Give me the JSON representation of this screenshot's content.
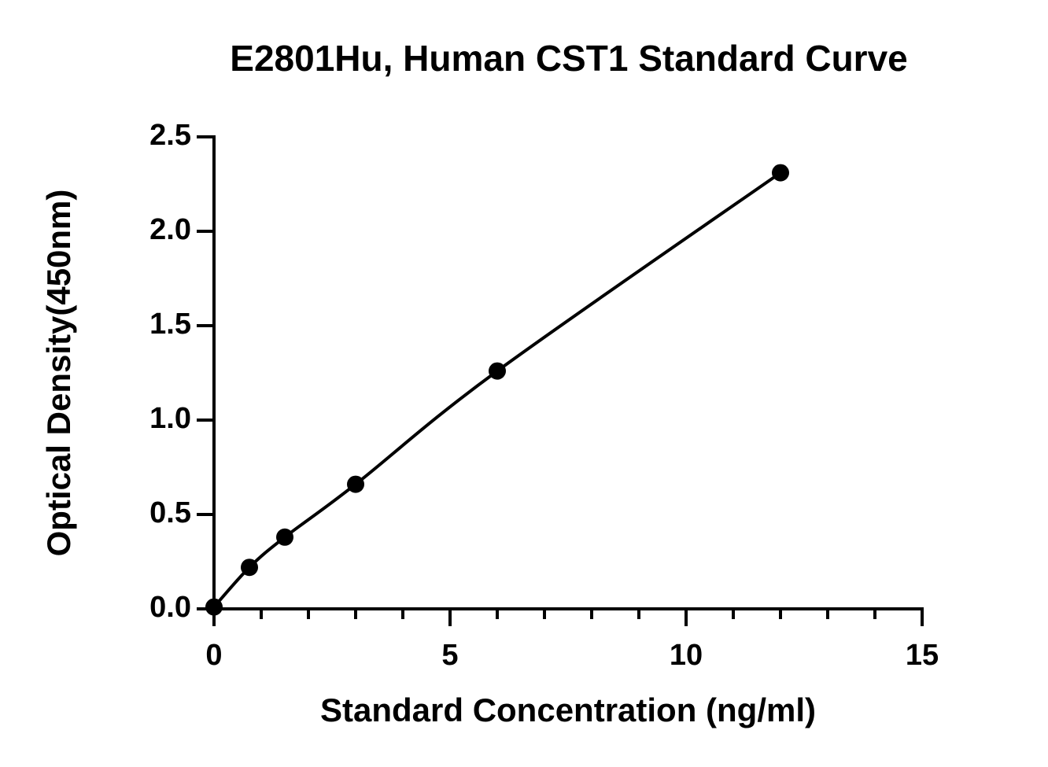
{
  "chart_data": {
    "type": "scatter",
    "title": "E2801Hu, Human CST1 Standard Curve",
    "x_label": "Standard Concentration (ng/ml)",
    "y_label": "Optical Density(450nm)",
    "x": [
      0,
      0.75,
      1.5,
      3,
      6,
      12
    ],
    "values": [
      0.01,
      0.22,
      0.38,
      0.66,
      1.26,
      2.31
    ],
    "color": "#000000",
    "fit_line": true,
    "xlim": [
      0,
      15
    ],
    "xticks": [
      0,
      5,
      10,
      15
    ],
    "xminorticks": [
      1,
      2,
      3,
      4,
      6,
      7,
      8,
      9,
      11,
      12,
      13,
      14
    ],
    "ylim": [
      0,
      2.5
    ],
    "yticks": [
      {
        "value": 0,
        "label": "0.0"
      },
      0.5,
      {
        "value": 1,
        "label": "1.0"
      },
      1.5,
      {
        "value": 2,
        "label": "2.0"
      },
      2.5
    ],
    "grid": false
  }
}
